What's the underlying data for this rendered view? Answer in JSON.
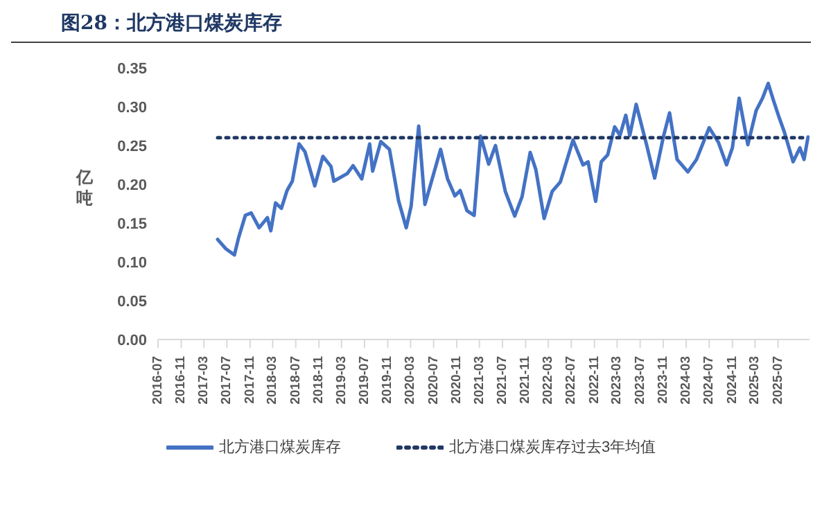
{
  "chart_data": {
    "type": "line",
    "title": "图28：北方港口煤炭库存",
    "ylabel": "亿吨",
    "xlim": [
      "2016-07",
      "2025-12-15"
    ],
    "xticks": [
      "2016-07",
      "2016-11",
      "2017-03",
      "2017-07",
      "2017-11",
      "2018-03",
      "2018-07",
      "2018-11",
      "2019-03",
      "2019-07",
      "2019-11",
      "2020-03",
      "2020-07",
      "2020-11",
      "2021-03",
      "2021-07",
      "2021-11",
      "2022-03",
      "2022-07",
      "2022-11",
      "2023-03",
      "2023-07",
      "2023-11",
      "2024-03",
      "2024-07",
      "2024-11",
      "2025-03",
      "2025-07"
    ],
    "ylim": [
      0,
      0.35
    ],
    "yticks": [
      {
        "value": 0,
        "label": "0.00"
      },
      {
        "value": 0.05,
        "label": "0.05"
      },
      {
        "value": 0.1,
        "label": "0.10"
      },
      {
        "value": 0.15,
        "label": "0.15"
      },
      {
        "value": 0.2,
        "label": "0.20"
      },
      {
        "value": 0.25,
        "label": "0.25"
      },
      {
        "value": 0.3,
        "label": "0.30"
      },
      {
        "value": 0.35,
        "label": "0.35"
      }
    ],
    "grid": false,
    "legend": "bottom",
    "marker": "none",
    "series": [
      {
        "name": "北方港口煤炭库存",
        "color": "#4472c4",
        "line_style": "solid",
        "x": [
          "2017-05-13",
          "2017-06-25",
          "2017-08-10",
          "2017-09-01",
          "2017-10-07",
          "2017-11-07",
          "2017-12-19",
          "2018-02-01",
          "2018-02-19",
          "2018-03-16",
          "2018-04-16",
          "2018-05-16",
          "2018-06-13",
          "2018-07-19",
          "2018-08-19",
          "2018-10-10",
          "2018-11-22",
          "2019-01-04",
          "2019-01-19",
          "2019-04-01",
          "2019-05-01",
          "2019-06-16",
          "2019-07-28",
          "2019-08-13",
          "2019-09-25",
          "2019-11-10",
          "2019-12-28",
          "2020-02-07",
          "2020-03-04",
          "2020-04-13",
          "2020-05-16",
          "2020-08-07",
          "2020-09-13",
          "2020-10-22",
          "2020-11-19",
          "2020-12-25",
          "2021-02-01",
          "2021-03-07",
          "2021-04-19",
          "2021-05-25",
          "2021-07-16",
          "2021-09-04",
          "2021-10-13",
          "2021-11-25",
          "2021-12-25",
          "2022-02-07",
          "2022-03-22",
          "2022-05-04",
          "2022-07-10",
          "2022-09-01",
          "2022-09-28",
          "2022-11-07",
          "2022-12-07",
          "2023-01-10",
          "2023-02-16",
          "2023-03-16",
          "2023-04-16",
          "2023-05-07",
          "2023-06-10",
          "2023-08-04",
          "2023-09-16",
          "2023-11-01",
          "2023-12-04",
          "2024-01-13",
          "2024-03-10",
          "2024-04-25",
          "2024-07-01",
          "2024-08-19",
          "2024-10-01",
          "2024-11-01",
          "2024-12-07",
          "2025-01-22",
          "2025-03-07",
          "2025-04-10",
          "2025-05-10",
          "2025-06-07",
          "2025-07-07",
          "2025-08-04",
          "2025-09-19",
          "2025-10-25",
          "2025-11-16",
          "2025-12-07"
        ],
        "values": [
          0.129,
          0.117,
          0.109,
          0.131,
          0.16,
          0.163,
          0.144,
          0.157,
          0.14,
          0.176,
          0.169,
          0.192,
          0.204,
          0.252,
          0.242,
          0.198,
          0.236,
          0.223,
          0.204,
          0.214,
          0.224,
          0.207,
          0.252,
          0.217,
          0.255,
          0.245,
          0.179,
          0.144,
          0.172,
          0.275,
          0.174,
          0.245,
          0.207,
          0.185,
          0.192,
          0.166,
          0.16,
          0.262,
          0.226,
          0.25,
          0.191,
          0.159,
          0.184,
          0.241,
          0.219,
          0.156,
          0.191,
          0.203,
          0.257,
          0.225,
          0.229,
          0.178,
          0.229,
          0.238,
          0.274,
          0.263,
          0.289,
          0.263,
          0.303,
          0.251,
          0.208,
          0.261,
          0.292,
          0.232,
          0.216,
          0.232,
          0.273,
          0.254,
          0.225,
          0.247,
          0.311,
          0.251,
          0.295,
          0.311,
          0.33,
          0.308,
          0.286,
          0.267,
          0.229,
          0.247,
          0.232,
          0.261
        ]
      },
      {
        "name": "北方港口煤炭库存过去3年均值",
        "color": "#203864",
        "line_style": "dotted",
        "x": [
          "2017-05-13",
          "2025-12-07"
        ],
        "values": [
          0.26,
          0.26
        ]
      }
    ]
  }
}
